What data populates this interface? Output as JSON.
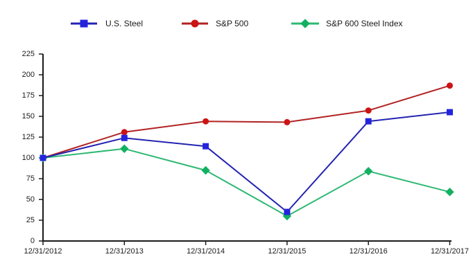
{
  "page": {
    "background": "#ffffff",
    "axis_color": "#1a1a1a",
    "text_color": "#1a1a1a"
  },
  "chart_data": {
    "type": "line",
    "title": "",
    "xlabel": "",
    "ylabel": "",
    "grid": false,
    "legend_position": "top",
    "ylim": [
      0,
      225
    ],
    "ytick_step": 25,
    "yticks": [
      "0",
      "25",
      "50",
      "75",
      "100",
      "125",
      "150",
      "175",
      "200",
      "225"
    ],
    "categories": [
      "12/31/2012",
      "12/31/2013",
      "12/31/2014",
      "12/31/2015",
      "12/31/2016",
      "12/31/2017"
    ],
    "series": [
      {
        "name": "U.S. Steel",
        "marker": "square",
        "line_color": "#2323b2",
        "marker_color": "#2424dd",
        "values": [
          100,
          124,
          114,
          35,
          144,
          155
        ]
      },
      {
        "name": "S&P 500",
        "marker": "circle",
        "line_color": "#b22222",
        "marker_color": "#cc1414",
        "values": [
          100,
          131,
          144,
          143,
          157,
          187
        ]
      },
      {
        "name": "S&P 600 Steel Index",
        "marker": "diamond",
        "line_color": "#2eb873",
        "marker_color": "#12b161",
        "values": [
          100,
          111,
          85,
          30,
          84,
          59
        ]
      }
    ]
  }
}
